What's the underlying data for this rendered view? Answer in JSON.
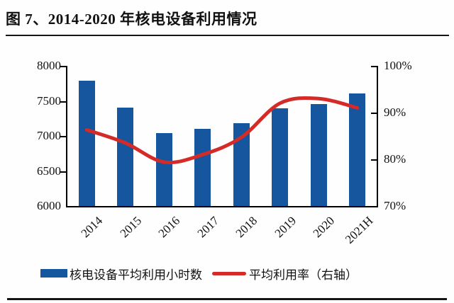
{
  "figure": {
    "title": "图 7、2014-2020 年核电设备利用情况"
  },
  "colors": {
    "bar_blue": "#16569e",
    "line_red": "#d42a28",
    "axis_black": "#000000",
    "rule_black": "#151515",
    "background": "#fefefe",
    "text": "#111111"
  },
  "chart_data": {
    "type": "bar",
    "subtype": "bar+line dual axis",
    "title": "图 7、2014-2020 年核电设备利用情况",
    "categories": [
      "2014",
      "2015",
      "2016",
      "2017",
      "2018",
      "2019",
      "2020",
      "2021H"
    ],
    "series": [
      {
        "name": "核电设备平均利用小时数",
        "type": "bar",
        "axis": "left",
        "values": [
          7790,
          7400,
          7040,
          7100,
          7180,
          7390,
          7450,
          7610
        ]
      },
      {
        "name": "平均利用率（右轴）",
        "type": "line",
        "axis": "right",
        "values": [
          86.3,
          83.5,
          79.4,
          81.0,
          84.7,
          92.0,
          93.0,
          91.0
        ]
      }
    ],
    "left_axis": {
      "min": 6000,
      "max": 8000,
      "ticks": [
        "8000",
        "7500",
        "7000",
        "6500",
        "6000"
      ]
    },
    "right_axis": {
      "min": 70,
      "max": 100,
      "ticks": [
        "100%",
        "90%",
        "80%",
        "70%"
      ]
    },
    "xlabel": "",
    "ylabel": "",
    "grid": false,
    "legend_position": "bottom"
  },
  "legend": {
    "bar_label": "核电设备平均利用小时数",
    "line_label": "平均利用率（右轴）"
  }
}
